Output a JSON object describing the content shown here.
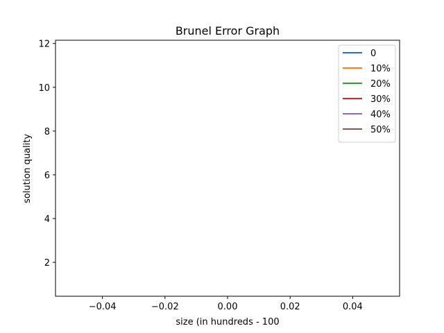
{
  "chart_data": {
    "type": "line",
    "title": "Brunel Error Graph",
    "xlabel": "size (in hundreds - 100",
    "ylabel": "solution quality",
    "xlim": [
      -0.055,
      0.055
    ],
    "ylim": [
      0.45,
      12.15
    ],
    "xticks": [
      -0.04,
      -0.02,
      0.0,
      0.02,
      0.04
    ],
    "xtick_labels": [
      "−0.04",
      "−0.02",
      "0.00",
      "0.02",
      "0.04"
    ],
    "yticks": [
      2,
      4,
      6,
      8,
      10,
      12
    ],
    "ytick_labels": [
      "2",
      "4",
      "6",
      "8",
      "10",
      "12"
    ],
    "grid": false,
    "legend_position": "top-right",
    "series": [
      {
        "name": "0",
        "color": "#1f77b4",
        "x": [],
        "y": []
      },
      {
        "name": "10%",
        "color": "#ff7f0e",
        "x": [],
        "y": []
      },
      {
        "name": "20%",
        "color": "#2ca02c",
        "x": [],
        "y": []
      },
      {
        "name": "30%",
        "color": "#d62728",
        "x": [],
        "y": []
      },
      {
        "name": "40%",
        "color": "#9467bd",
        "x": [],
        "y": []
      },
      {
        "name": "50%",
        "color": "#8c564b",
        "x": [],
        "y": []
      }
    ]
  }
}
